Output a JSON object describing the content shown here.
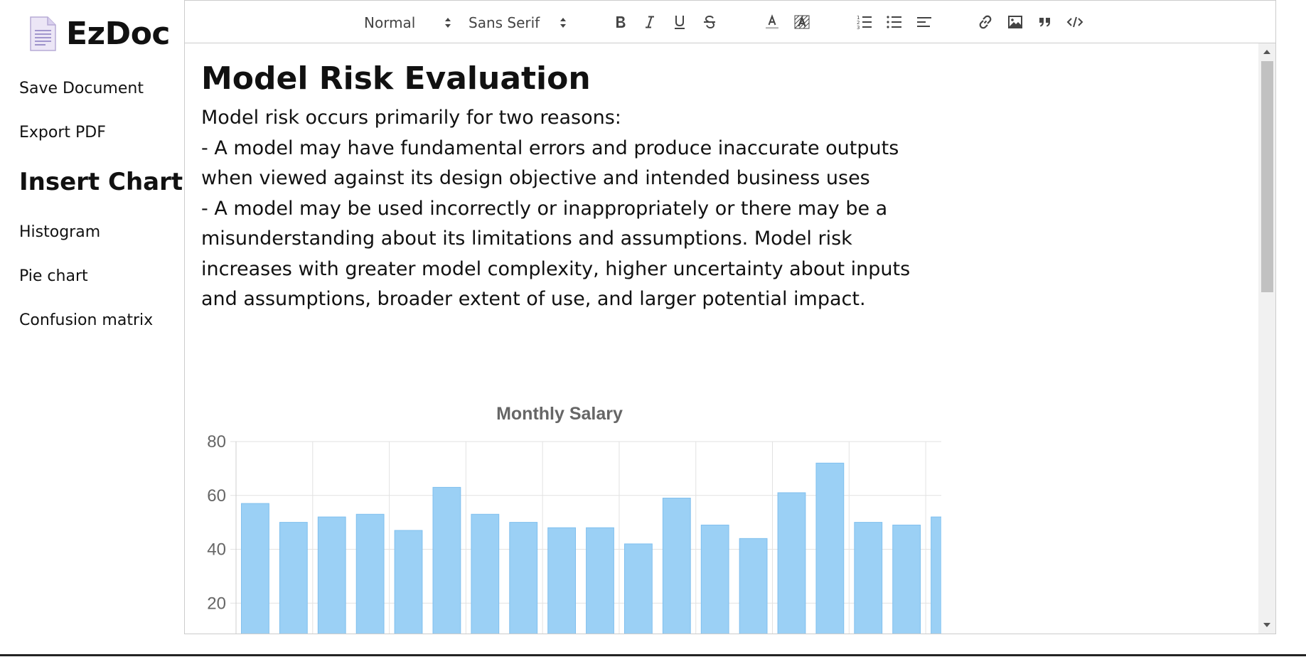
{
  "app": {
    "name": "EzDoc",
    "icon": "document-icon",
    "accent": "#7a6bb0"
  },
  "sidebar": {
    "items": [
      {
        "label": "Save Document",
        "icon": null
      },
      {
        "label": "Export PDF",
        "icon": null
      }
    ],
    "heading": "Insert Chart",
    "chart_items": [
      {
        "label": "Histogram"
      },
      {
        "label": "Pie chart"
      },
      {
        "label": "Confusion matrix"
      }
    ]
  },
  "toolbar": {
    "format_select": "Normal",
    "font_select": "Sans Serif",
    "buttons": [
      "bold-icon",
      "italic-icon",
      "underline-icon",
      "strikethrough-icon",
      "text-color-icon",
      "background-color-icon",
      "ordered-list-icon",
      "bullet-list-icon",
      "align-left-icon",
      "link-icon",
      "image-icon",
      "blockquote-icon",
      "code-block-icon"
    ]
  },
  "document": {
    "title": "Model Risk Evaluation",
    "lines": [
      "Model risk occurs primarily for two reasons:",
      "- A model may have fundamental errors and produce inaccurate outputs",
      "when viewed against its design objective and intended business uses",
      "- A model may be used incorrectly or inappropriately or there may be a",
      "misunderstanding about its limitations and assumptions. Model risk",
      "increases with greater model complexity, higher uncertainty about inputs",
      "and assumptions, broader extent of use, and larger potential impact."
    ]
  },
  "chart_data": {
    "type": "bar",
    "title": "Monthly Salary",
    "xlabel": "",
    "ylabel": "",
    "values": [
      57,
      50,
      52,
      53,
      47,
      63,
      53,
      50,
      48,
      48,
      42,
      59,
      49,
      44,
      61,
      72,
      50,
      49,
      52
    ],
    "ylim": [
      0,
      80
    ],
    "yticks": [
      0,
      20,
      40,
      60,
      80
    ],
    "grid": true,
    "bar_color": "#9bd0f5",
    "bar_border": "#7fbfee"
  }
}
